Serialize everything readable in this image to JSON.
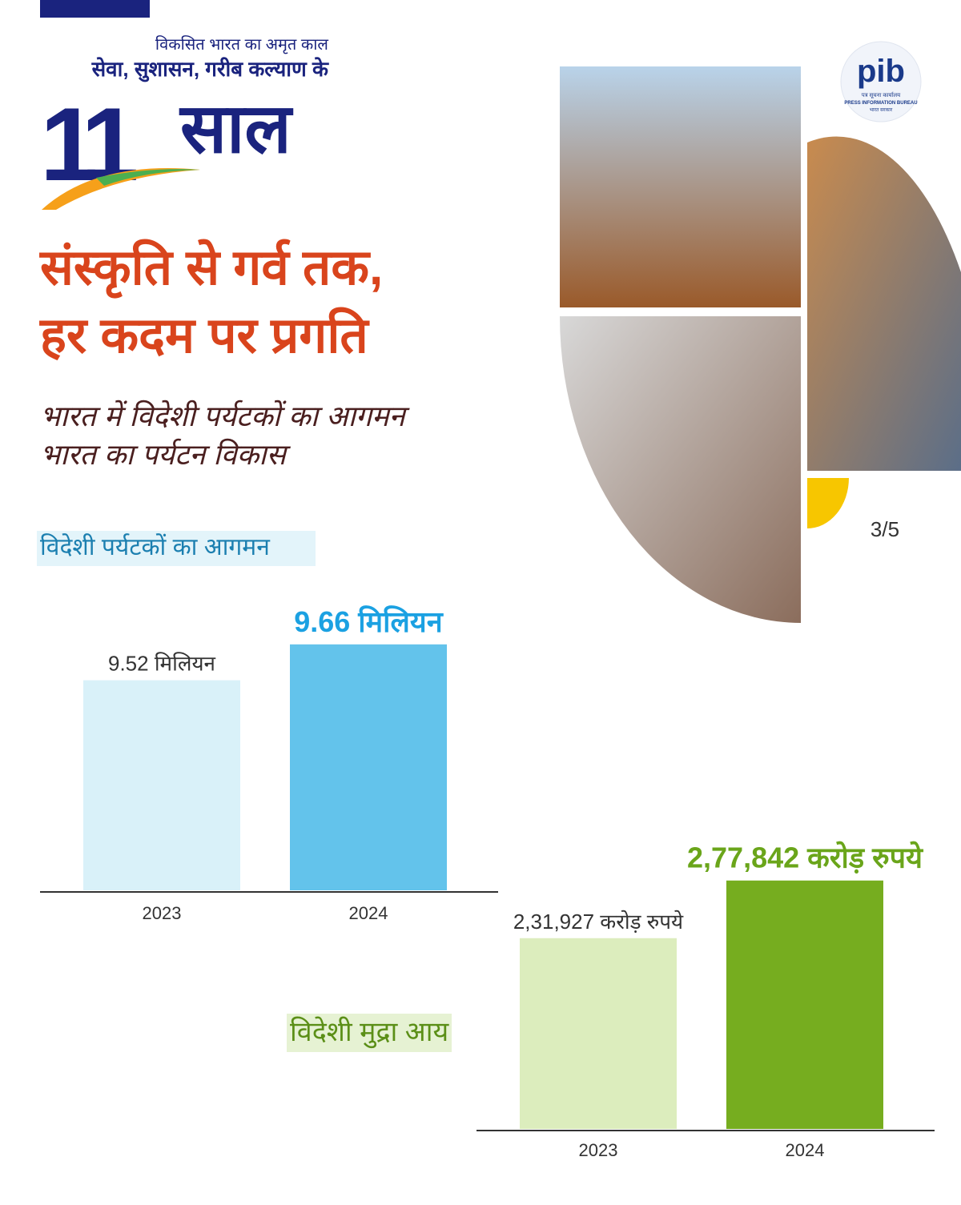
{
  "header": {
    "tagline": "विकसित भारत का अमृत काल",
    "subtitle": "सेवा, सुशासन, गरीब कल्याण के",
    "number": "11",
    "word": "साल"
  },
  "logo": {
    "mark": "pib",
    "hindi": "पत्र सूचना कार्यालय",
    "english": "PRESS INFORMATION BUREAU",
    "govt": "भारत सरकार"
  },
  "headline": [
    "संस्कृति से गर्व तक,",
    "हर कदम पर प्रगति"
  ],
  "subheadline": [
    "भारत में विदेशी पर्यटकों का आगमन",
    "भारत का पर्यटन विकास"
  ],
  "page_indicator": "3/5",
  "chart_data": [
    {
      "type": "bar",
      "title": "विदेशी पर्यटकों का आगमन",
      "categories": [
        "2023",
        "2024"
      ],
      "values": [
        9.52,
        9.66
      ],
      "value_labels": [
        "9.52 मिलियन",
        "9.66 मिलियन"
      ],
      "colors": [
        "#d9f1f9",
        "#63c3eb"
      ],
      "label_colors": [
        "#333333",
        "#1ba1e2"
      ],
      "title_color": "#1b7fb0",
      "title_bg": "#e3f4fa",
      "ylim": [
        8.7,
        10
      ]
    },
    {
      "type": "bar",
      "title": "विदेशी मुद्रा आय",
      "categories": [
        "2023",
        "2024"
      ],
      "values": [
        231927,
        277842
      ],
      "value_labels": [
        "2,31,927 करोड़ रुपये",
        "2,77,842 करोड़ रुपये"
      ],
      "colors": [
        "#dcedbd",
        "#76ad1f"
      ],
      "label_colors": [
        "#333333",
        "#6aa51a"
      ],
      "title_color": "#5b8f17",
      "title_bg": "#e6f2d3",
      "ylim": [
        80000,
        300000
      ]
    }
  ]
}
